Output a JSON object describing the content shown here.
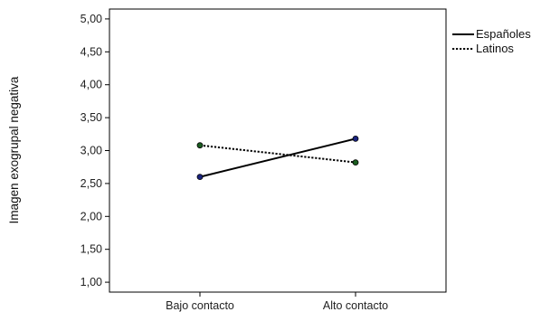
{
  "chart_data": {
    "type": "line",
    "categories": [
      "Bajo contacto",
      "Alto contacto"
    ],
    "series": [
      {
        "name": "Españoles",
        "values": [
          2.6,
          3.18
        ],
        "style": "solid",
        "color": "#000000",
        "marker_color": "#1a237e"
      },
      {
        "name": "Latinos",
        "values": [
          3.08,
          2.82
        ],
        "style": "dotted",
        "color": "#000000",
        "marker_color": "#1b5e20"
      }
    ],
    "title": "",
    "xlabel": "",
    "ylabel": "Imagen exogrupal negativa",
    "ylim": [
      0.85,
      5.15
    ],
    "yticks": [
      "1,00",
      "1,50",
      "2,00",
      "2,50",
      "3,00",
      "3,50",
      "4,00",
      "4,50",
      "5,00"
    ],
    "grid": false,
    "legend_position": "top-right"
  }
}
